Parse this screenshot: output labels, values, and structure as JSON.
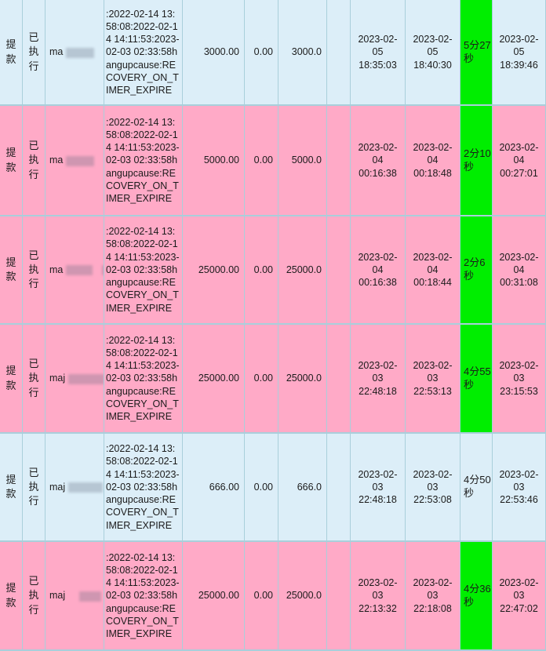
{
  "table": {
    "name": "withdrawal-records-table",
    "colors": {
      "row_blue": "#dceef8",
      "row_pink": "#ffaac7",
      "duration_green": "#00ee00",
      "grid_border": "#a9cfdb",
      "text": "#1b1b1b"
    },
    "rows": [
      {
        "type": "提款",
        "status": "已执行",
        "account_prefix": "ma",
        "masked_name": true,
        "detail": ":2022-02-14 13:58:08:2022-02-14 14:11:53:2023-02-03 02:33:58hangupcause:RECOVERY_ON_TIMER_EXPIRE",
        "amount": "3000.00",
        "fee": "0.00",
        "actual_amount": "3000.0",
        "spare": "",
        "start_time": "2023-02-05 18:35:03",
        "process_time": "2023-02-05 18:40:30",
        "duration": "5分27秒",
        "finish_time": "2023-02-05 18:39:46",
        "highlight": "blue",
        "duration_highlight": true
      },
      {
        "type": "提款",
        "status": "已执行",
        "account_prefix": "ma",
        "masked_name": true,
        "detail": ":2022-02-14 13:58:08:2022-02-14 14:11:53:2023-02-03 02:33:58hangupcause:RECOVERY_ON_TIMER_EXPIRE",
        "amount": "5000.00",
        "fee": "0.00",
        "actual_amount": "5000.0",
        "spare": "",
        "start_time": "2023-02-04 00:16:38",
        "process_time": "2023-02-04 00:18:48",
        "duration": "2分10秒",
        "finish_time": "2023-02-04 00:27:01",
        "highlight": "pink",
        "duration_highlight": true
      },
      {
        "type": "提款",
        "status": "已执行",
        "account_prefix": "ma",
        "masked_name": true,
        "detail": ":2022-02-14 13:58:08:2022-02-14 14:11:53:2023-02-03 02:33:58hangupcause:RECOVERY_ON_TIMER_EXPIRE",
        "amount": "25000.00",
        "fee": "0.00",
        "actual_amount": "25000.0",
        "spare": "",
        "start_time": "2023-02-04 00:16:38",
        "process_time": "2023-02-04 00:18:44",
        "duration": "2分6秒",
        "finish_time": "2023-02-04 00:31:08",
        "highlight": "pink",
        "duration_highlight": true
      },
      {
        "type": "提款",
        "status": "已执行",
        "account_prefix": "maj",
        "masked_name": true,
        "detail": ":2022-02-14 13:58:08:2022-02-14 14:11:53:2023-02-03 02:33:58hangupcause:RECOVERY_ON_TIMER_EXPIRE",
        "amount": "25000.00",
        "fee": "0.00",
        "actual_amount": "25000.0",
        "spare": "",
        "start_time": "2023-02-03 22:48:18",
        "process_time": "2023-02-03 22:53:13",
        "duration": "4分55秒",
        "finish_time": "2023-02-03 23:15:53",
        "highlight": "pink",
        "duration_highlight": true
      },
      {
        "type": "提款",
        "status": "已执行",
        "account_prefix": "maj",
        "masked_name": true,
        "detail": ":2022-02-14 13:58:08:2022-02-14 14:11:53:2023-02-03 02:33:58hangupcause:RECOVERY_ON_TIMER_EXPIRE",
        "amount": "666.00",
        "fee": "0.00",
        "actual_amount": "666.0",
        "spare": "",
        "start_time": "2023-02-03 22:48:18",
        "process_time": "2023-02-03 22:53:08",
        "duration": "4分50秒",
        "finish_time": "2023-02-03 22:53:46",
        "highlight": "blue",
        "duration_highlight": false
      },
      {
        "type": "提款",
        "status": "已执行",
        "account_prefix": "maj",
        "masked_name": true,
        "detail": ":2022-02-14 13:58:08:2022-02-14 14:11:53:2023-02-03 02:33:58hangupcause:RECOVERY_ON_TIMER_EXPIRE",
        "amount": "25000.00",
        "fee": "0.00",
        "actual_amount": "25000.0",
        "spare": "",
        "start_time": "2023-02-03 22:13:32",
        "process_time": "2023-02-03 22:18:08",
        "duration": "4分36秒",
        "finish_time": "2023-02-03 22:47:02",
        "highlight": "pink",
        "duration_highlight": true
      }
    ]
  }
}
